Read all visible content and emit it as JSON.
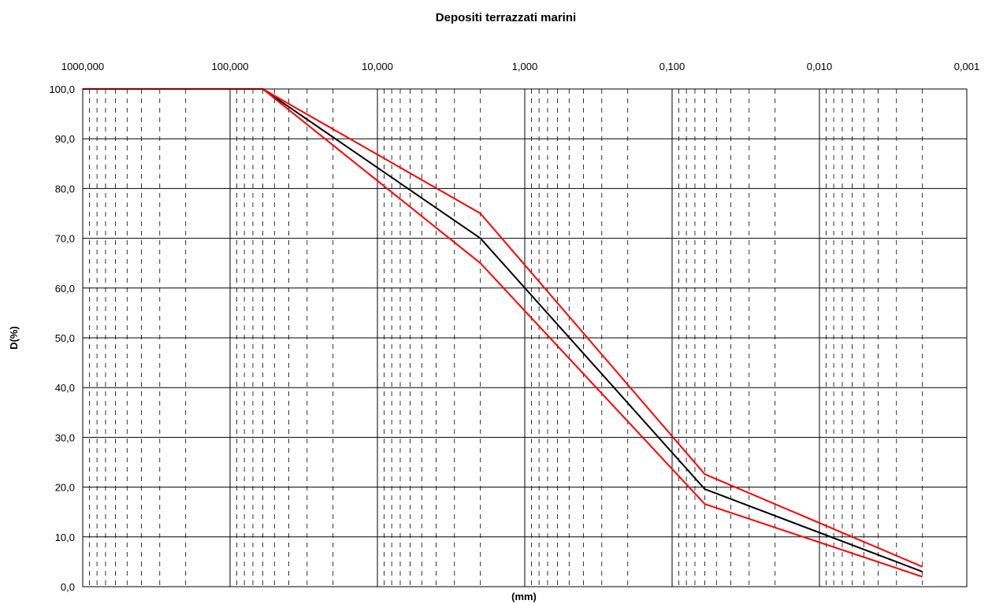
{
  "chart_data": {
    "type": "line",
    "title": "Depositi terrazzati marini",
    "xlabel": "(mm)",
    "ylabel": "D(%)",
    "x_scale": "log",
    "x_reversed": true,
    "xlim": [
      1000,
      0.001
    ],
    "ylim": [
      0,
      100
    ],
    "x_tick_labels": [
      "1000,000",
      "100,000",
      "10,000",
      "1,000",
      "0,100",
      "0,010",
      "0,001"
    ],
    "x_tick_values": [
      1000,
      100,
      10,
      1,
      0.1,
      0.01,
      0.001
    ],
    "y_tick_labels": [
      "0,0",
      "10,0",
      "20,0",
      "30,0",
      "40,0",
      "50,0",
      "60,0",
      "70,0",
      "80,0",
      "90,0",
      "100,0"
    ],
    "y_tick_values": [
      0,
      10,
      20,
      30,
      40,
      50,
      60,
      70,
      80,
      90,
      100
    ],
    "grid": true,
    "legend": "none",
    "series": [
      {
        "color": "#000000",
        "x": [
          1000,
          60,
          2,
          0.06,
          0.002
        ],
        "y": [
          100,
          100,
          70,
          19.6,
          3
        ]
      },
      {
        "color": "#ff0000",
        "x": [
          1000,
          60,
          2,
          0.06,
          0.002
        ],
        "y": [
          100,
          100,
          75,
          22.6,
          4
        ]
      },
      {
        "color": "#ff0000",
        "x": [
          1000,
          60,
          2,
          0.06,
          0.002
        ],
        "y": [
          100,
          100,
          65,
          16.6,
          2
        ]
      }
    ]
  }
}
